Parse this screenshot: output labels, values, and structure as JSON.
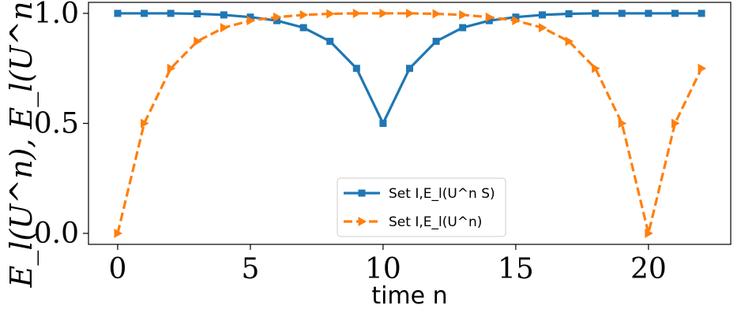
{
  "chart_data": {
    "type": "line",
    "title": "",
    "xlabel": "time n",
    "ylabel": "E_l(U^n), E_l(U^n S)",
    "xlim": [
      -1.1,
      23.1
    ],
    "ylim": [
      -0.05,
      1.05
    ],
    "xticks": [
      0,
      5,
      10,
      15,
      20
    ],
    "yticks": [
      0.0,
      0.5,
      1.0
    ],
    "ytick_labels": [
      "0.0",
      "0.5",
      "1.0"
    ],
    "grid": false,
    "legend_position": "lower center",
    "series": [
      {
        "name": "Set I,E_l(U^n S)",
        "color": "#1f77b4",
        "marker": "square",
        "linestyle": "solid",
        "x": [
          0,
          1,
          2,
          3,
          4,
          5,
          6,
          7,
          8,
          9,
          10,
          11,
          12,
          13,
          14,
          15,
          16,
          17,
          18,
          19,
          20,
          21,
          22
        ],
        "values": [
          1.0,
          1.0,
          1.0,
          0.998,
          0.993,
          0.983,
          0.967,
          0.935,
          0.873,
          0.75,
          0.5,
          0.75,
          0.873,
          0.935,
          0.967,
          0.983,
          0.993,
          0.998,
          1.0,
          1.0,
          1.0,
          1.0,
          1.0
        ]
      },
      {
        "name": "Set I,E_l(U^n)",
        "color": "#ff7f0e",
        "marker": "triangle-right",
        "linestyle": "dashed",
        "x": [
          0,
          1,
          2,
          3,
          4,
          5,
          6,
          7,
          8,
          9,
          10,
          11,
          12,
          13,
          14,
          15,
          16,
          17,
          18,
          19,
          20,
          21,
          22
        ],
        "values": [
          0.0,
          0.5,
          0.75,
          0.873,
          0.935,
          0.967,
          0.983,
          0.993,
          0.998,
          1.0,
          1.0,
          1.0,
          0.998,
          0.993,
          0.983,
          0.967,
          0.935,
          0.873,
          0.75,
          0.5,
          0.0,
          0.5,
          0.75
        ]
      }
    ]
  }
}
